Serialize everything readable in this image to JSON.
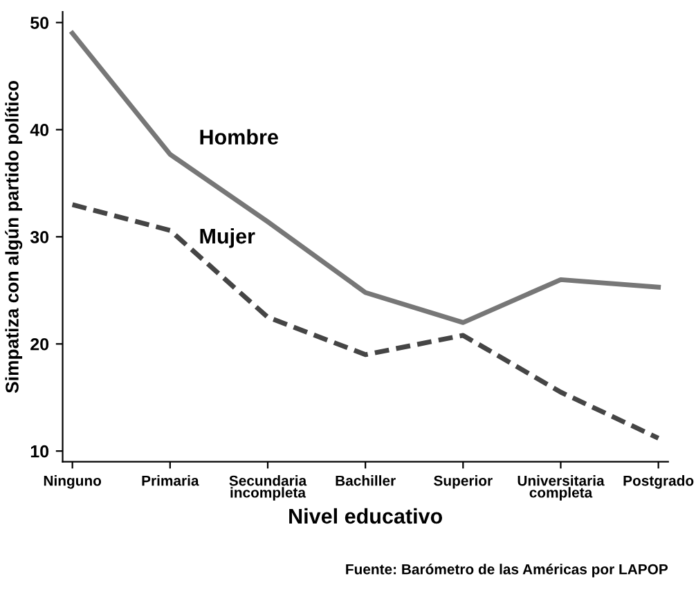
{
  "chart_data": {
    "type": "line",
    "xlabel": "Nivel educativo",
    "ylabel": "Simpatiza con algún partido político",
    "categories": [
      "Ninguno",
      "Primaria",
      "Secundaria\nincompleta",
      "Bachiller",
      "Superior",
      "Universitaria\ncompleta",
      "Postgrado"
    ],
    "series": [
      {
        "name": "Hombre",
        "color": "#777777",
        "line_style": "solid",
        "values": [
          49,
          37.7,
          31.4,
          24.8,
          22,
          26,
          25.3
        ]
      },
      {
        "name": "Mujer",
        "color": "#454545",
        "line_style": "dashed",
        "values": [
          33,
          30.6,
          22.5,
          19,
          20.8,
          15.5,
          11.2
        ]
      }
    ],
    "ylim": [
      9,
      51
    ],
    "yticks": [
      10,
      20,
      30,
      40,
      50
    ],
    "grid": false,
    "legend": false,
    "marker": "none",
    "annotations": [
      "Fuente: Barómetro de las Américas por LAPOP"
    ]
  }
}
